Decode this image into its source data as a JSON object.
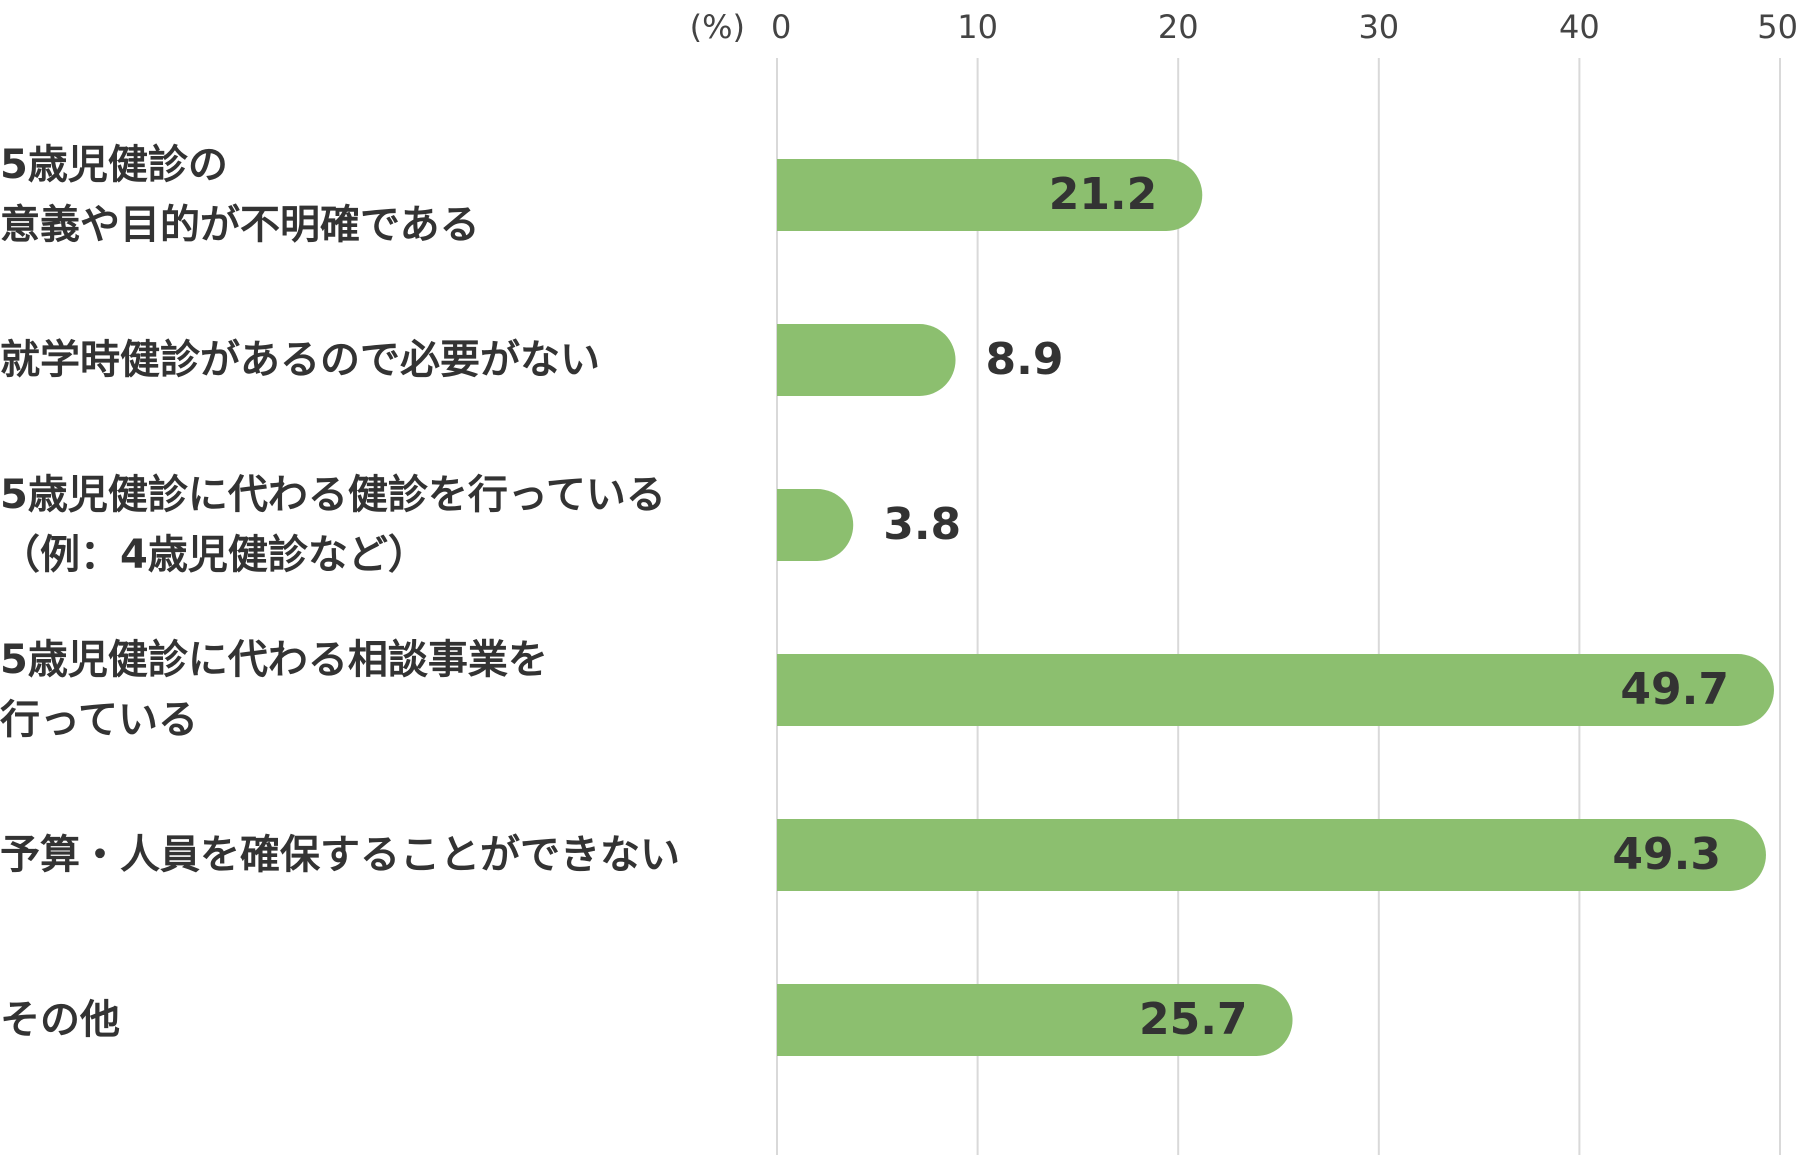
{
  "chart_data": {
    "type": "bar",
    "orientation": "horizontal",
    "unit_label": "(%)",
    "categories": [
      "5歳児健診の\n意義や目的が不明確である",
      "就学時健診があるので必要がない",
      "5歳児健診に代わる健診を行っている\n（例：4歳児健診など）",
      "5歳児健診に代わる相談事業を\n行っている",
      "予算・人員を確保することができない",
      "その他"
    ],
    "values": [
      21.2,
      8.9,
      3.8,
      49.7,
      49.3,
      25.7
    ],
    "value_labels": [
      "21.2",
      "8.9",
      "3.8",
      "49.7",
      "49.3",
      "25.7"
    ],
    "xlim": [
      0,
      50
    ],
    "ticks": [
      "0",
      "10",
      "20",
      "30",
      "40",
      "50"
    ],
    "grid": true,
    "legend": "none",
    "colors": {
      "bar": "#8cbf6f",
      "grid": "#d9d9d9",
      "text": "#333333"
    }
  }
}
